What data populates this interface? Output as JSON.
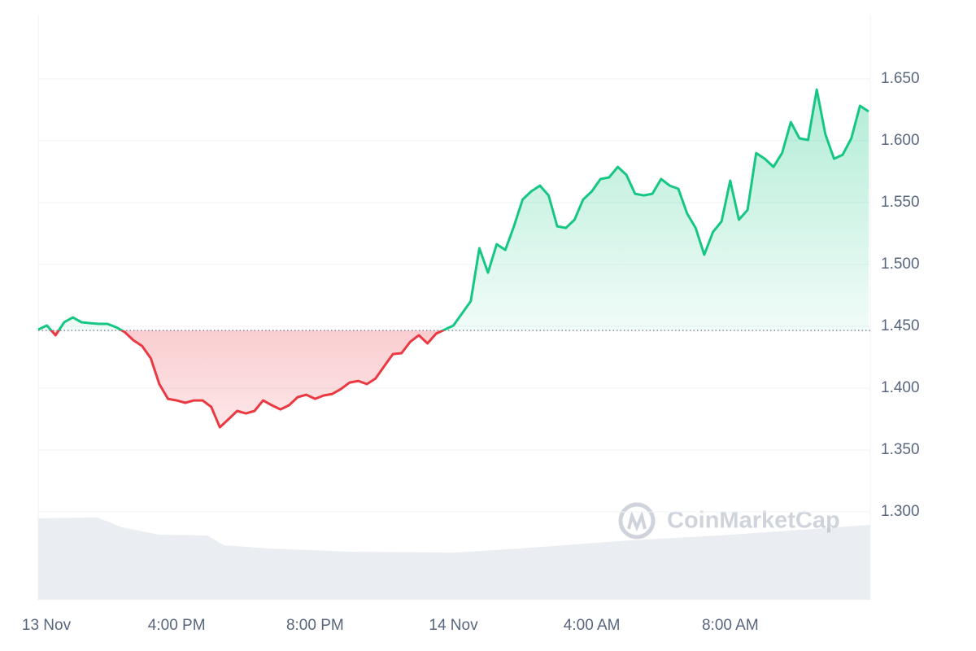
{
  "chart_data": {
    "type": "baseline-line",
    "watermark": "CoinMarketCap",
    "categories": [
      "13 Nov",
      null,
      null,
      null,
      null,
      null,
      null,
      null,
      null,
      null,
      null,
      null,
      null,
      null,
      null,
      null,
      "4:00 PM",
      null,
      null,
      null,
      null,
      null,
      null,
      null,
      null,
      null,
      null,
      null,
      null,
      null,
      null,
      null,
      "8:00 PM",
      null,
      null,
      null,
      null,
      null,
      null,
      null,
      null,
      null,
      null,
      null,
      null,
      null,
      null,
      null,
      "14 Nov",
      null,
      null,
      null,
      null,
      null,
      null,
      null,
      null,
      null,
      null,
      null,
      null,
      null,
      null,
      null,
      "4:00 AM",
      null,
      null,
      null,
      null,
      null,
      null,
      null,
      null,
      null,
      null,
      null,
      null,
      null,
      null,
      null,
      "8:00 AM",
      null,
      null,
      null,
      null,
      null,
      null,
      null,
      null,
      null,
      null,
      null,
      null,
      null,
      null,
      null,
      null
    ],
    "values": [
      1.4474,
      1.4507,
      1.4428,
      1.4533,
      1.4572,
      1.4533,
      1.4526,
      1.452,
      1.452,
      1.4493,
      1.4454,
      1.4388,
      1.4342,
      1.4243,
      1.4033,
      1.3914,
      1.3901,
      1.3882,
      1.3901,
      1.3901,
      1.3849,
      1.3684,
      1.375,
      1.3816,
      1.3796,
      1.3816,
      1.3901,
      1.3862,
      1.3829,
      1.3862,
      1.3928,
      1.3947,
      1.3914,
      1.3941,
      1.3954,
      1.3993,
      1.4046,
      1.4059,
      1.4033,
      1.4079,
      1.4178,
      1.4276,
      1.4283,
      1.4375,
      1.4428,
      1.4362,
      1.4441,
      1.4474,
      1.4507,
      1.4605,
      1.4704,
      1.5132,
      1.4934,
      1.5164,
      1.5118,
      1.5309,
      1.5526,
      1.5592,
      1.5638,
      1.5559,
      1.5309,
      1.5296,
      1.5362,
      1.5526,
      1.5592,
      1.5691,
      1.5704,
      1.5789,
      1.5724,
      1.5572,
      1.5559,
      1.5572,
      1.5691,
      1.5638,
      1.5612,
      1.5414,
      1.5296,
      1.5079,
      1.5263,
      1.5349,
      1.5678,
      1.5362,
      1.5441,
      1.5901,
      1.5855,
      1.5789,
      1.5901,
      1.6151,
      1.602,
      1.6007,
      1.6414,
      1.6053,
      1.5855,
      1.5888,
      1.602,
      1.6283,
      1.6237
    ],
    "baseline": 1.4467,
    "up_color": "#16c784",
    "down_color": "#ea3943",
    "ylim": [
      1.229,
      1.702
    ],
    "yticks": [
      {
        "value": 1.3,
        "label": "1.300"
      },
      {
        "value": 1.35,
        "label": "1.350"
      },
      {
        "value": 1.4,
        "label": "1.400"
      },
      {
        "value": 1.45,
        "label": "1.450"
      },
      {
        "value": 1.5,
        "label": "1.500"
      },
      {
        "value": 1.55,
        "label": "1.550"
      },
      {
        "value": 1.6,
        "label": "1.600"
      },
      {
        "value": 1.65,
        "label": "1.650"
      }
    ],
    "grid": true
  }
}
